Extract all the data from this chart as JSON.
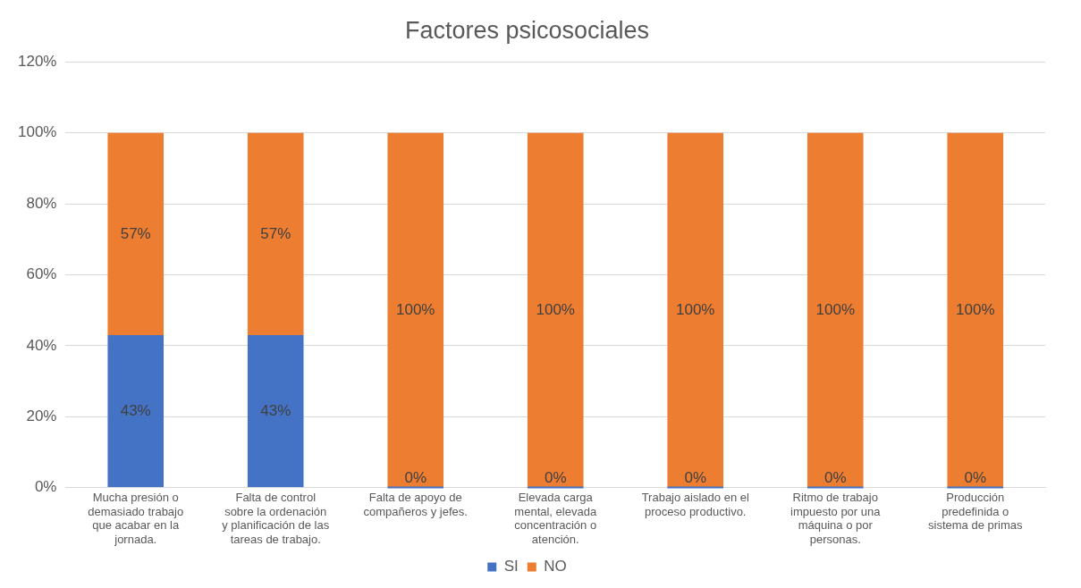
{
  "chart_data": {
    "type": "bar",
    "title": "Factores psicosociales",
    "categories": [
      "Mucha presión o demasiado trabajo que acabar en la jornada.",
      "Falta de control sobre la ordenación y planificación de las tareas de trabajo.",
      "Falta de apoyo de compañeros y jefes.",
      "Elevada carga mental, elevada concentración o atención.",
      "Trabajo aislado en el proceso productivo.",
      "Ritmo de trabajo impuesto por una máquina o por personas.",
      "Producción predefinida o sistema de primas"
    ],
    "series": [
      {
        "name": "SI",
        "color": "#4472c4",
        "values": [
          43,
          43,
          0,
          0,
          0,
          0,
          0
        ],
        "value_labels": [
          "43%",
          "43%",
          "0%",
          "0%",
          "0%",
          "0%",
          "0%"
        ]
      },
      {
        "name": "NO",
        "color": "#ed7d31",
        "values": [
          57,
          57,
          100,
          100,
          100,
          100,
          100
        ],
        "value_labels": [
          "57%",
          "57%",
          "100%",
          "100%",
          "100%",
          "100%",
          "100%"
        ]
      }
    ],
    "stacked": true,
    "ylim": [
      0,
      120
    ],
    "yticks": [
      {
        "value": 0,
        "label": "0%"
      },
      {
        "value": 20,
        "label": "20%"
      },
      {
        "value": 40,
        "label": "40%"
      },
      {
        "value": 60,
        "label": "60%"
      },
      {
        "value": 80,
        "label": "80%"
      },
      {
        "value": 100,
        "label": "100%"
      },
      {
        "value": 120,
        "label": "120%"
      }
    ],
    "grid": "y",
    "legend": "bottom"
  }
}
